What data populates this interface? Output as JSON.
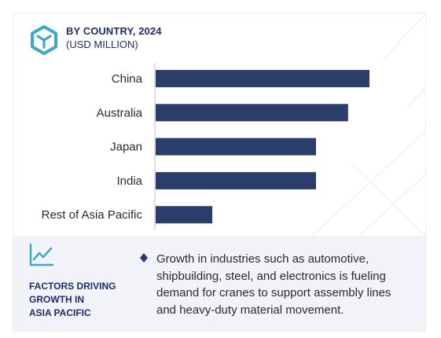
{
  "header": {
    "title": "BY COUNTRY, 2024",
    "subtitle": "(USD MILLION)",
    "logo_icon": "cube-hexagon-icon"
  },
  "chart_data": {
    "type": "bar",
    "orientation": "horizontal",
    "categories": [
      "China",
      "Australia",
      "Japan",
      "India",
      "Rest of Asia Pacific"
    ],
    "values": [
      100,
      90,
      75,
      75,
      26.5
    ],
    "xlim": [
      0,
      100
    ],
    "axis_labels_visible": false,
    "grid": false,
    "bar_color": "#2b3d6b"
  },
  "footer": {
    "icon": "trend-line-icon",
    "label_lines": [
      "FACTORS DRIVING",
      "GROWTH IN",
      "ASIA PACIFIC"
    ],
    "bullet_icon": "diamond-bullet-icon",
    "description": "Growth in industries such as automotive, shipbuilding, steel, and electronics is fueling demand for cranes to support assembly lines and heavy-duty material movement."
  },
  "colors": {
    "accent_teal": "#3ea8c6",
    "navy": "#1f2c6b",
    "bar": "#2b3d6b",
    "panel_bg": "#f1f3f8"
  }
}
